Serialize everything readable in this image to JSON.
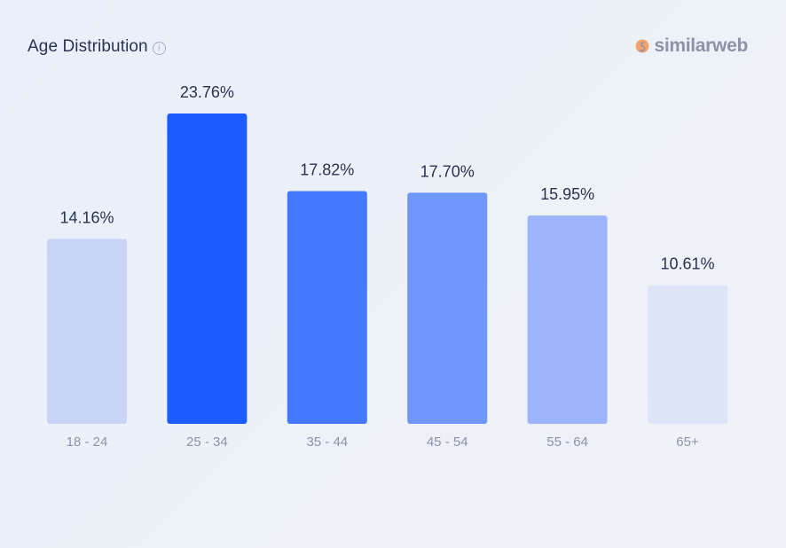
{
  "header": {
    "title": "Age Distribution",
    "info_icon": "info-icon"
  },
  "brand": {
    "name": "similarweb",
    "icon": "similarweb-logo-icon",
    "colors": {
      "icon_primary": "#f5a36c",
      "icon_secondary": "#8c93a7"
    }
  },
  "chart_data": {
    "type": "bar",
    "title": "Age Distribution",
    "xlabel": "",
    "ylabel": "",
    "categories": [
      "18 - 24",
      "25 - 34",
      "35 - 44",
      "45 - 54",
      "55 - 64",
      "65+"
    ],
    "values": [
      14.16,
      23.76,
      17.82,
      17.7,
      15.95,
      10.61
    ],
    "value_labels": [
      "14.16%",
      "23.76%",
      "17.82%",
      "17.70%",
      "15.95%",
      "10.61%"
    ],
    "bar_colors": [
      "#c9d4f7",
      "#1b5cff",
      "#4479ff",
      "#7097fc",
      "#9db6fb",
      "#dfe5f8"
    ],
    "ylim": [
      0,
      23.76
    ],
    "grid": false,
    "legend": "none"
  }
}
